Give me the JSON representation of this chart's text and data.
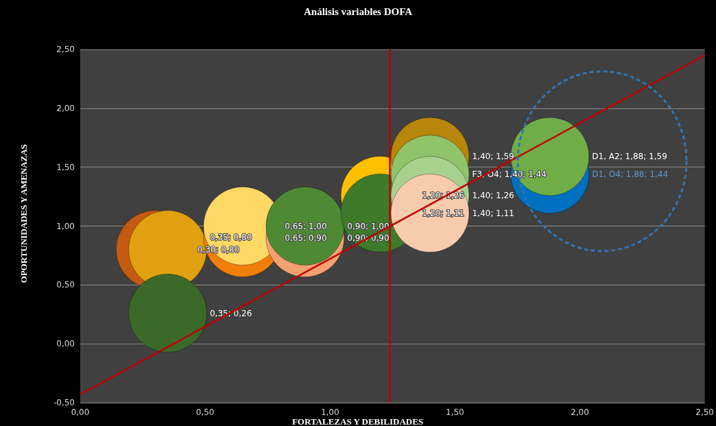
{
  "chart_data": {
    "type": "bubble",
    "title": "Análisis variables DOFA",
    "xlabel": "FORTALEZAS Y DEBILIDADES",
    "ylabel": "OPORTUNIDADES Y AMENAZAS",
    "xlim": [
      0,
      2.5
    ],
    "ylim": [
      -0.5,
      2.5
    ],
    "xticks": [
      {
        "value": 0,
        "label": "0,00"
      },
      {
        "value": 0.5,
        "label": "0,50"
      },
      {
        "value": 1,
        "label": "1,00"
      },
      {
        "value": 1.5,
        "label": "1,50"
      },
      {
        "value": 2,
        "label": "2,00"
      },
      {
        "value": 2.5,
        "label": "2,50"
      }
    ],
    "yticks": [
      {
        "value": -0.5,
        "label": "-0,50"
      },
      {
        "value": 0,
        "label": "0,00"
      },
      {
        "value": 0.5,
        "label": "0,50"
      },
      {
        "value": 1,
        "label": "1,00"
      },
      {
        "value": 1.5,
        "label": "1,50"
      },
      {
        "value": 2,
        "label": "2,00"
      },
      {
        "value": 2.5,
        "label": "2,50"
      }
    ],
    "grid": "y",
    "ref_lines": [
      {
        "axis": "x",
        "value": 1.24,
        "color": "#c00000"
      }
    ],
    "series": [
      {
        "x": [
          0.3,
          0.35,
          0.35,
          0.65,
          0.65,
          0.9,
          0.9,
          1.2,
          1.2,
          1.4,
          1.4,
          1.4,
          1.4,
          1.88,
          1.88
        ],
        "values": [
          0.8,
          0.8,
          0.26,
          0.9,
          1.0,
          0.9,
          1.0,
          1.26,
          1.11,
          1.59,
          1.44,
          1.26,
          1.11,
          1.44,
          1.59
        ],
        "sizes": [
          1,
          1,
          1,
          1,
          1,
          1,
          1,
          1,
          1,
          1,
          1,
          1,
          1,
          1,
          1
        ],
        "colors": [
          "#c55a11",
          "#e0a010",
          "#3b6a28",
          "#f07f09",
          "#ffd966",
          "#f4a070",
          "#4e8a34",
          "#ffc000",
          "#3e7a2a",
          "#b8860b",
          "#8fc46a",
          "#a9d18e",
          "#f8cbad",
          "#0070c0",
          "#70ad47"
        ],
        "value_labels": [
          "0,30; 0,80",
          "0,35; 0,80",
          "0,35; 0,26",
          "0,65; 0,90",
          "0,65; 1,00",
          "0,90; 0,90",
          "0,90; 1,00",
          "1,20; 1,26",
          "1,20; 1,11",
          "1,40; 1,59",
          "F3, O4; 1,40; 1,44",
          "1,40; 1,26",
          "1,40; 1,11",
          "D1, O4; 1,88; 1,44",
          "D1, A2; 1,88; 1,59"
        ]
      },
      {
        "type": "line",
        "x": [
          0,
          2.5
        ],
        "values": [
          -0.43,
          2.45
        ],
        "color": "#c00000",
        "marker": "none"
      }
    ]
  }
}
